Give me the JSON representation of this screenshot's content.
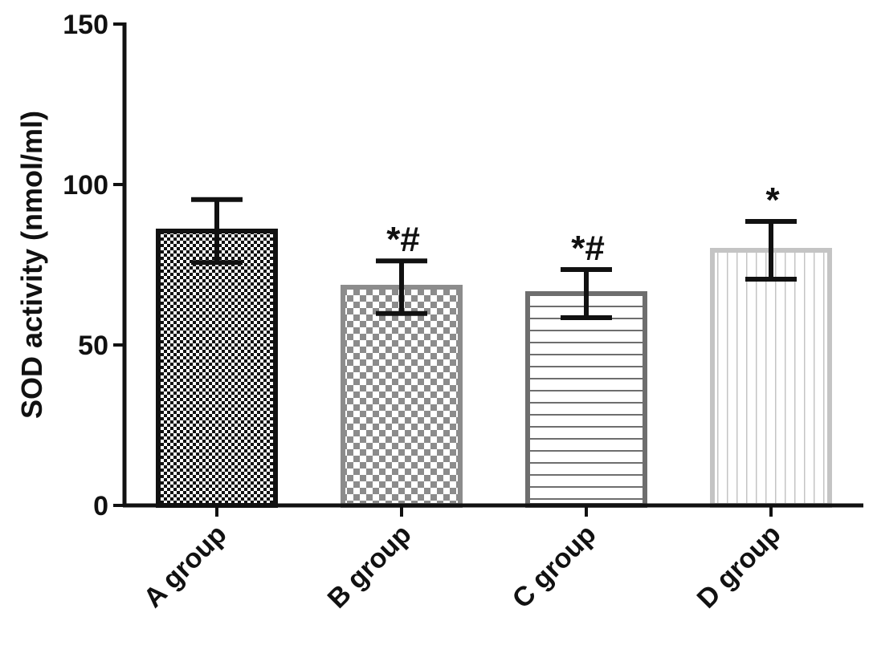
{
  "chart_data": {
    "type": "bar",
    "title": "",
    "xlabel": "",
    "ylabel": "SOD activity (nmol/ml)",
    "ylim": [
      0,
      150
    ],
    "yticks": [
      0,
      50,
      100,
      150
    ],
    "categories": [
      "A group",
      "B group",
      "C group",
      "D group"
    ],
    "values": [
      85.5,
      68,
      66,
      79.5
    ],
    "error": [
      9.8,
      8.2,
      7.5,
      9
    ],
    "annotations": [
      "",
      "*#",
      "*#",
      "*"
    ],
    "fills": [
      "dense-checker",
      "checker",
      "horizontal-lines",
      "vertical-lines"
    ],
    "colors": [
      "#111111",
      "#8c8c8c",
      "#6e6e6e",
      "#c4c4c4"
    ],
    "grid": false,
    "legend": false
  }
}
